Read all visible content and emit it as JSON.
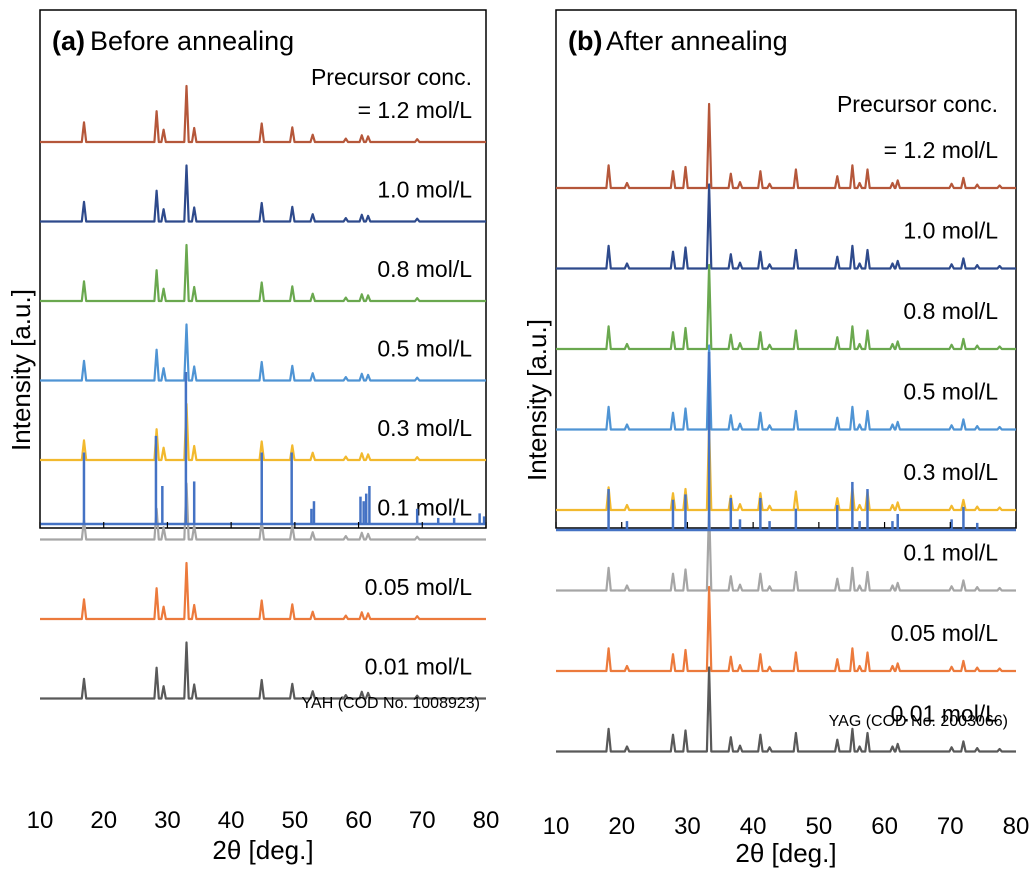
{
  "chart_data": [
    {
      "type": "line",
      "panel_tag": "(a)",
      "title": "Before annealing",
      "xlabel": "2θ [deg.]",
      "ylabel": "Intensity [a.u.]",
      "xlim": [
        10,
        80
      ],
      "xticks": [
        "10",
        "20",
        "30",
        "40",
        "50",
        "60",
        "70",
        "80"
      ],
      "series_header": "Precursor conc.",
      "series": [
        {
          "label": "= 1.2 mol/L",
          "color": "#b5573a"
        },
        {
          "label": "1.0 mol/L",
          "color": "#2e4a8c"
        },
        {
          "label": "0.8 mol/L",
          "color": "#6aa84f"
        },
        {
          "label": "0.5 mol/L",
          "color": "#4f94d4"
        },
        {
          "label": "0.3 mol/L",
          "color": "#f2b92e"
        },
        {
          "label": "0.1 mol/L",
          "color": "#a6a6a6"
        },
        {
          "label": "0.05 mol/L",
          "color": "#ec7a3c"
        },
        {
          "label": "0.01 mol/L",
          "color": "#595959"
        }
      ],
      "peaks": [
        {
          "x": 16.9,
          "h": 0.35
        },
        {
          "x": 28.3,
          "h": 0.55
        },
        {
          "x": 29.4,
          "h": 0.22
        },
        {
          "x": 33.0,
          "h": 1.0
        },
        {
          "x": 34.2,
          "h": 0.25
        },
        {
          "x": 44.8,
          "h": 0.33
        },
        {
          "x": 49.6,
          "h": 0.26
        },
        {
          "x": 52.8,
          "h": 0.13
        },
        {
          "x": 58.0,
          "h": 0.06
        },
        {
          "x": 60.5,
          "h": 0.12
        },
        {
          "x": 61.5,
          "h": 0.1
        },
        {
          "x": 69.2,
          "h": 0.05
        }
      ],
      "reference": {
        "label": "YAH (COD No. 1008923)",
        "color": "#4472c4",
        "lines": [
          {
            "x": 16.9,
            "h": 0.47
          },
          {
            "x": 28.2,
            "h": 0.58
          },
          {
            "x": 29.2,
            "h": 0.25
          },
          {
            "x": 32.9,
            "h": 1.0
          },
          {
            "x": 34.2,
            "h": 0.28
          },
          {
            "x": 44.8,
            "h": 0.47
          },
          {
            "x": 49.5,
            "h": 0.47
          },
          {
            "x": 52.6,
            "h": 0.1
          },
          {
            "x": 53.0,
            "h": 0.15
          },
          {
            "x": 60.3,
            "h": 0.18
          },
          {
            "x": 60.8,
            "h": 0.15
          },
          {
            "x": 61.2,
            "h": 0.2
          },
          {
            "x": 61.7,
            "h": 0.25
          },
          {
            "x": 69.2,
            "h": 0.1
          },
          {
            "x": 72.5,
            "h": 0.04
          },
          {
            "x": 75.0,
            "h": 0.04
          },
          {
            "x": 79.0,
            "h": 0.07
          },
          {
            "x": 79.7,
            "h": 0.05
          }
        ]
      }
    },
    {
      "type": "line",
      "panel_tag": "(b)",
      "title": "After annealing",
      "xlabel": "2θ [deg.]",
      "ylabel": "Intensity [a.u.]",
      "xlim": [
        10,
        80
      ],
      "xticks": [
        "10",
        "20",
        "30",
        "40",
        "50",
        "60",
        "70",
        "80"
      ],
      "series_header": "Precursor conc.",
      "series": [
        {
          "label": "= 1.2 mol/L",
          "color": "#b5573a"
        },
        {
          "label": "1.0 mol/L",
          "color": "#2e4a8c"
        },
        {
          "label": "0.8 mol/L",
          "color": "#6aa84f"
        },
        {
          "label": "0.5 mol/L",
          "color": "#4f94d4"
        },
        {
          "label": "0.3 mol/L",
          "color": "#f2b92e"
        },
        {
          "label": "0.1 mol/L",
          "color": "#a6a6a6"
        },
        {
          "label": "0.05 mol/L",
          "color": "#ec7a3c"
        },
        {
          "label": "0.01 mol/L",
          "color": "#595959"
        }
      ],
      "peaks": [
        {
          "x": 18.0,
          "h": 0.27
        },
        {
          "x": 20.8,
          "h": 0.06
        },
        {
          "x": 27.8,
          "h": 0.2
        },
        {
          "x": 29.7,
          "h": 0.25
        },
        {
          "x": 33.3,
          "h": 1.0
        },
        {
          "x": 36.6,
          "h": 0.17
        },
        {
          "x": 38.0,
          "h": 0.07
        },
        {
          "x": 41.1,
          "h": 0.2
        },
        {
          "x": 42.5,
          "h": 0.05
        },
        {
          "x": 46.5,
          "h": 0.22
        },
        {
          "x": 52.8,
          "h": 0.14
        },
        {
          "x": 55.1,
          "h": 0.27
        },
        {
          "x": 56.2,
          "h": 0.06
        },
        {
          "x": 57.4,
          "h": 0.22
        },
        {
          "x": 61.2,
          "h": 0.06
        },
        {
          "x": 62.0,
          "h": 0.09
        },
        {
          "x": 70.2,
          "h": 0.05
        },
        {
          "x": 72.0,
          "h": 0.12
        },
        {
          "x": 74.1,
          "h": 0.04
        },
        {
          "x": 77.5,
          "h": 0.03
        }
      ],
      "reference": {
        "label": "YAG (COD No. 2003066)",
        "color": "#4472c4",
        "lines": [
          {
            "x": 18.0,
            "h": 0.23
          },
          {
            "x": 20.8,
            "h": 0.05
          },
          {
            "x": 27.8,
            "h": 0.17
          },
          {
            "x": 29.7,
            "h": 0.2
          },
          {
            "x": 33.3,
            "h": 1.0
          },
          {
            "x": 36.6,
            "h": 0.18
          },
          {
            "x": 38.0,
            "h": 0.06
          },
          {
            "x": 41.1,
            "h": 0.18
          },
          {
            "x": 42.5,
            "h": 0.05
          },
          {
            "x": 46.5,
            "h": 0.12
          },
          {
            "x": 52.8,
            "h": 0.14
          },
          {
            "x": 55.1,
            "h": 0.27
          },
          {
            "x": 56.2,
            "h": 0.05
          },
          {
            "x": 57.4,
            "h": 0.23
          },
          {
            "x": 61.2,
            "h": 0.05
          },
          {
            "x": 62.0,
            "h": 0.09
          },
          {
            "x": 70.2,
            "h": 0.06
          },
          {
            "x": 72.0,
            "h": 0.13
          },
          {
            "x": 74.1,
            "h": 0.04
          }
        ]
      }
    }
  ]
}
